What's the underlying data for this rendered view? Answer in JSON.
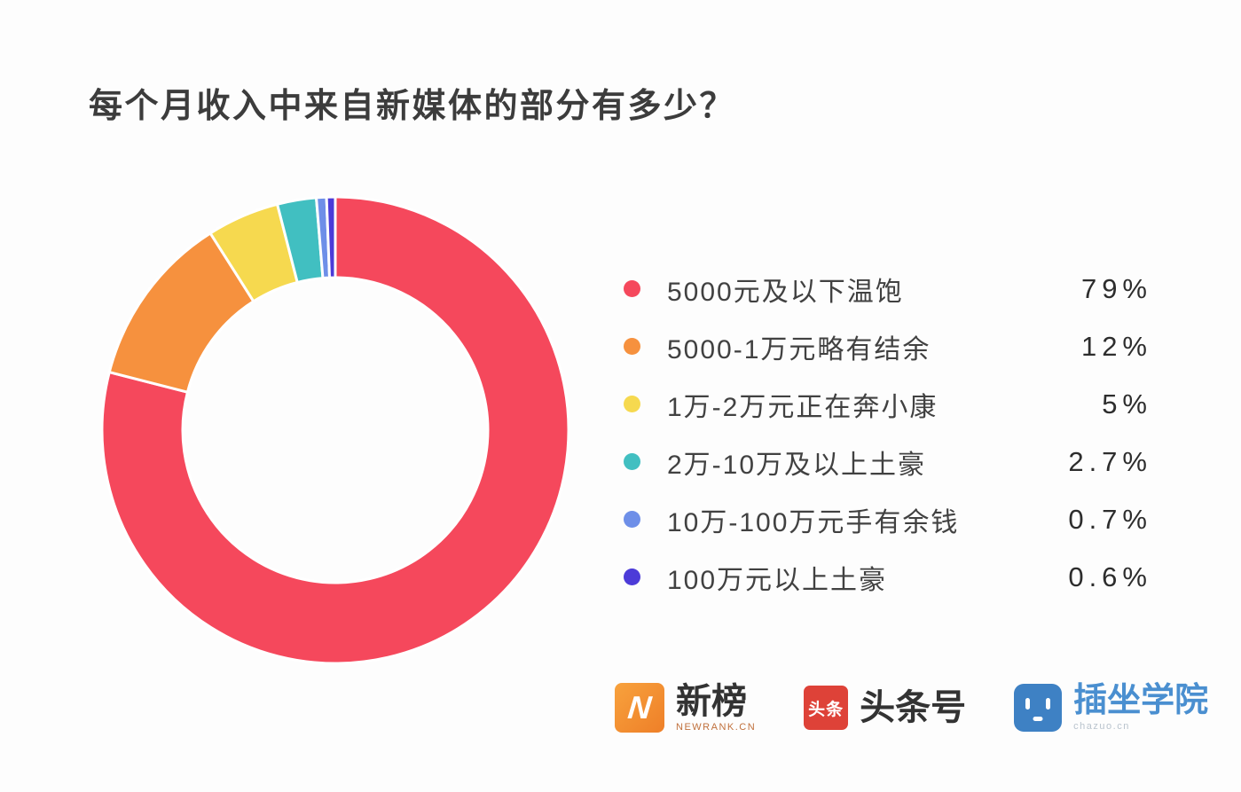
{
  "title": "每个月收入中来自新媒体的部分有多少？",
  "chart_data": {
    "type": "pie",
    "variant": "donut",
    "title": "每个月收入中来自新媒体的部分有多少？",
    "start_angle_deg": 0,
    "direction": "clockwise",
    "legend_position": "right",
    "gap_color": "#ffffff",
    "series": [
      {
        "label": "5000元及以下温饱",
        "value": 79,
        "display": "79%",
        "color": "#f5485c"
      },
      {
        "label": "5000-1万元略有结余",
        "value": 12,
        "display": "12%",
        "color": "#f6913e"
      },
      {
        "label": "1万-2万元正在奔小康",
        "value": 5,
        "display": "5%",
        "color": "#f6d94f"
      },
      {
        "label": "2万-10万及以上土豪",
        "value": 2.7,
        "display": "2.7%",
        "color": "#41bfc1"
      },
      {
        "label": "10万-100万元手有余钱",
        "value": 0.7,
        "display": "0.7%",
        "color": "#6e8fe8"
      },
      {
        "label": "100万元以上土豪",
        "value": 0.6,
        "display": "0.6%",
        "color": "#4c3bd8"
      }
    ]
  },
  "footer": {
    "brands": [
      {
        "name": "newrank",
        "logo_text": "N",
        "label": "新榜",
        "sub_label": "NEWRANK.CN",
        "color": "#ee7f28"
      },
      {
        "name": "toutiao",
        "logo_text": "头条",
        "label": "头条号",
        "color": "#de4238"
      },
      {
        "name": "chazuo",
        "label": "插坐学院",
        "sub_label": "chazuo.cn",
        "color": "#3e81c4"
      }
    ]
  }
}
